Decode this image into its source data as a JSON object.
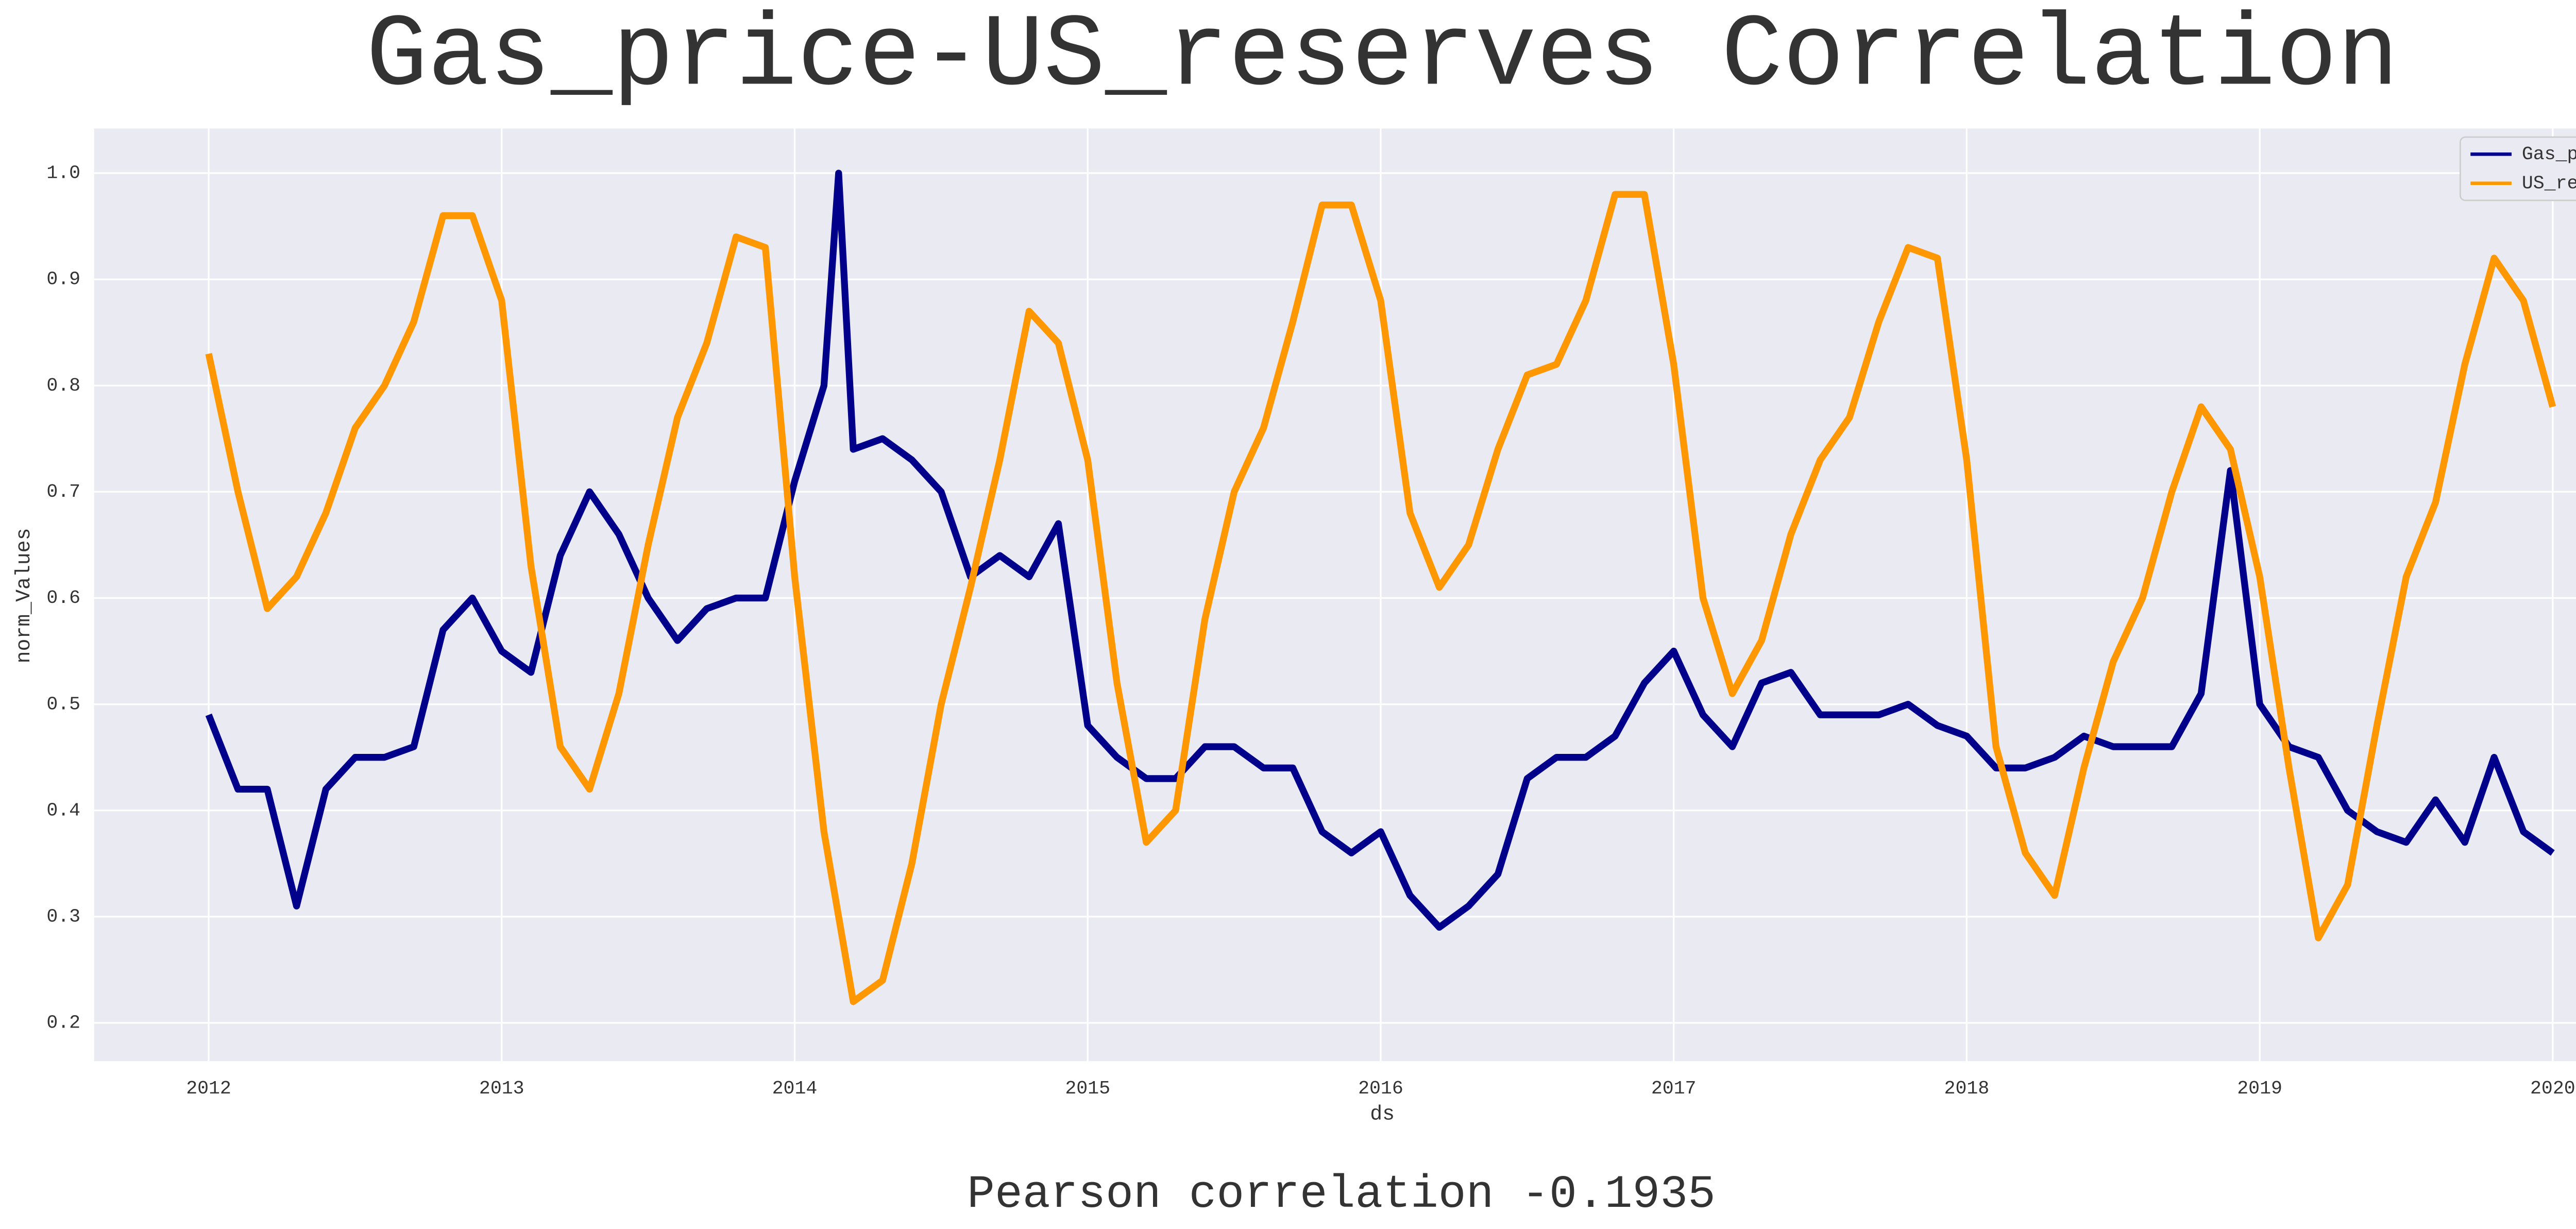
{
  "chart_data": {
    "type": "line",
    "title": "Gas_price-US_reserves Correlation",
    "x_label": "ds",
    "y_label": "norm_Values",
    "annotation": "Pearson correlation -0.1935",
    "grid": true,
    "legend": "upper right",
    "xlim": [
      2011.609,
      2020.385
    ],
    "ylim": [
      0.164,
      1.042
    ],
    "xticks": [
      2012,
      2013,
      2014,
      2015,
      2016,
      2017,
      2018,
      2019,
      2020
    ],
    "yticks": [
      0.2,
      0.3,
      0.4,
      0.5,
      0.6,
      0.7,
      0.8,
      0.9,
      {
        "value": 1.0,
        "label": "1.0"
      }
    ],
    "x": [
      2012.0,
      2012.1,
      2012.2,
      2012.3,
      2012.4,
      2012.5,
      2012.6,
      2012.7,
      2012.8,
      2012.9,
      2013.0,
      2013.1,
      2013.2,
      2013.3,
      2013.4,
      2013.5,
      2013.6,
      2013.7,
      2013.8,
      2013.9,
      2014.0,
      2014.1,
      2014.15,
      2014.2,
      2014.3,
      2014.4,
      2014.5,
      2014.6,
      2014.7,
      2014.8,
      2014.9,
      2015.0,
      2015.1,
      2015.2,
      2015.3,
      2015.4,
      2015.5,
      2015.6,
      2015.7,
      2015.8,
      2015.9,
      2016.0,
      2016.1,
      2016.2,
      2016.3,
      2016.4,
      2016.5,
      2016.6,
      2016.7,
      2016.8,
      2016.9,
      2017.0,
      2017.1,
      2017.2,
      2017.3,
      2017.4,
      2017.5,
      2017.6,
      2017.7,
      2017.8,
      2017.9,
      2018.0,
      2018.1,
      2018.2,
      2018.3,
      2018.4,
      2018.5,
      2018.6,
      2018.7,
      2018.8,
      2018.9,
      2019.0,
      2019.1,
      2019.2,
      2019.3,
      2019.4,
      2019.5,
      2019.6,
      2019.7,
      2019.8,
      2019.9,
      2020.0
    ],
    "series": [
      {
        "name": "Gas_price",
        "color": "#00008b",
        "values": [
          0.49,
          0.42,
          0.42,
          0.31,
          0.42,
          0.45,
          0.45,
          0.46,
          0.57,
          0.6,
          0.55,
          0.53,
          0.64,
          0.7,
          0.66,
          0.6,
          0.56,
          0.59,
          0.6,
          0.6,
          0.71,
          0.8,
          1.0,
          0.74,
          0.75,
          0.73,
          0.7,
          0.62,
          0.64,
          0.62,
          0.67,
          0.48,
          0.45,
          0.43,
          0.43,
          0.46,
          0.46,
          0.44,
          0.44,
          0.38,
          0.36,
          0.38,
          0.32,
          0.29,
          0.31,
          0.34,
          0.43,
          0.45,
          0.45,
          0.47,
          0.52,
          0.55,
          0.49,
          0.46,
          0.52,
          0.53,
          0.49,
          0.49,
          0.49,
          0.5,
          0.48,
          0.47,
          0.44,
          0.44,
          0.45,
          0.47,
          0.46,
          0.46,
          0.46,
          0.51,
          0.72,
          0.5,
          0.46,
          0.45,
          0.4,
          0.38,
          0.37,
          0.41,
          0.37,
          0.45,
          0.38,
          0.36
        ]
      },
      {
        "name": "US_reserves",
        "color": "#ff9800",
        "values": [
          0.83,
          0.7,
          0.59,
          0.62,
          0.68,
          0.76,
          0.8,
          0.86,
          0.96,
          0.96,
          0.88,
          0.63,
          0.46,
          0.42,
          0.51,
          0.65,
          0.77,
          0.84,
          0.94,
          0.93,
          0.62,
          0.38,
          0.3,
          0.22,
          0.24,
          0.35,
          0.5,
          0.61,
          0.73,
          0.87,
          0.84,
          0.73,
          0.52,
          0.37,
          0.4,
          0.58,
          0.7,
          0.76,
          0.86,
          0.97,
          0.97,
          0.88,
          0.68,
          0.61,
          0.65,
          0.74,
          0.81,
          0.82,
          0.88,
          0.98,
          0.98,
          0.82,
          0.6,
          0.51,
          0.56,
          0.66,
          0.73,
          0.77,
          0.86,
          0.93,
          0.92,
          0.73,
          0.46,
          0.36,
          0.32,
          0.44,
          0.54,
          0.6,
          0.7,
          0.78,
          0.74,
          0.62,
          0.44,
          0.28,
          0.33,
          0.48,
          0.62,
          0.69,
          0.82,
          0.92,
          0.88,
          0.78
        ]
      }
    ]
  }
}
